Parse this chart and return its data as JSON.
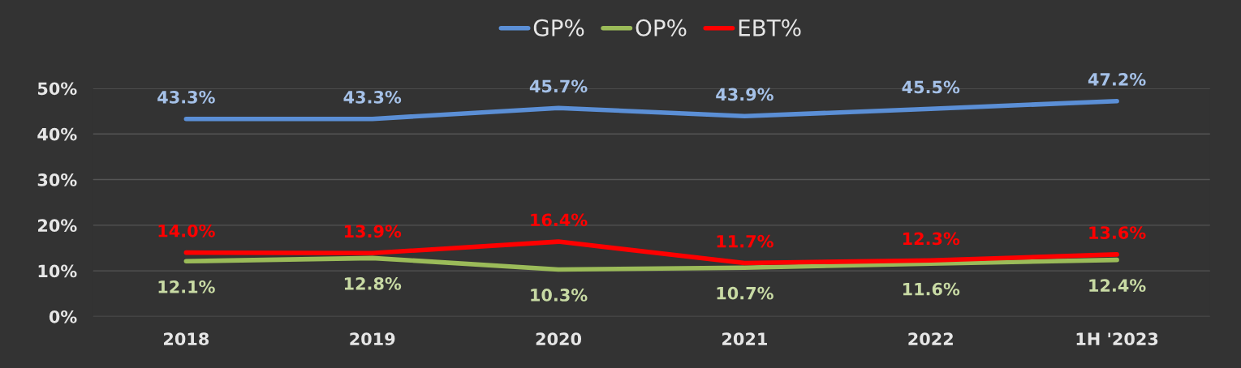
{
  "chart_data": {
    "type": "line",
    "categories": [
      "2018",
      "2019",
      "2020",
      "2021",
      "2022",
      "1H '2023"
    ],
    "series": [
      {
        "name": "GP%",
        "color": "#5b8fd6",
        "values": [
          43.3,
          43.3,
          45.7,
          43.9,
          45.5,
          47.2
        ],
        "value_labels": [
          "43.3%",
          "43.3%",
          "45.7%",
          "43.9%",
          "45.5%",
          "47.2%"
        ]
      },
      {
        "name": "OP%",
        "color": "#9bbb59",
        "values": [
          12.1,
          12.8,
          10.3,
          10.7,
          11.6,
          12.4
        ],
        "value_labels": [
          "12.1%",
          "12.8%",
          "10.3%",
          "10.7%",
          "11.6%",
          "12.4%"
        ]
      },
      {
        "name": "EBT%",
        "color": "#ff0000",
        "values": [
          14.0,
          13.9,
          16.4,
          11.7,
          12.3,
          13.6
        ],
        "value_labels": [
          "14.0%",
          "13.9%",
          "16.4%",
          "11.7%",
          "12.3%",
          "13.6%"
        ]
      }
    ],
    "ylim": [
      0,
      50
    ],
    "yticks": [
      {
        "value": 0,
        "label": "0%"
      },
      {
        "value": 10,
        "label": "10%"
      },
      {
        "value": 20,
        "label": "20%"
      },
      {
        "value": 30,
        "label": "30%"
      },
      {
        "value": 40,
        "label": "40%"
      },
      {
        "value": 50,
        "label": "50%"
      }
    ],
    "grid": "y",
    "legend": "top",
    "marker": "none",
    "line_style": "solid"
  }
}
